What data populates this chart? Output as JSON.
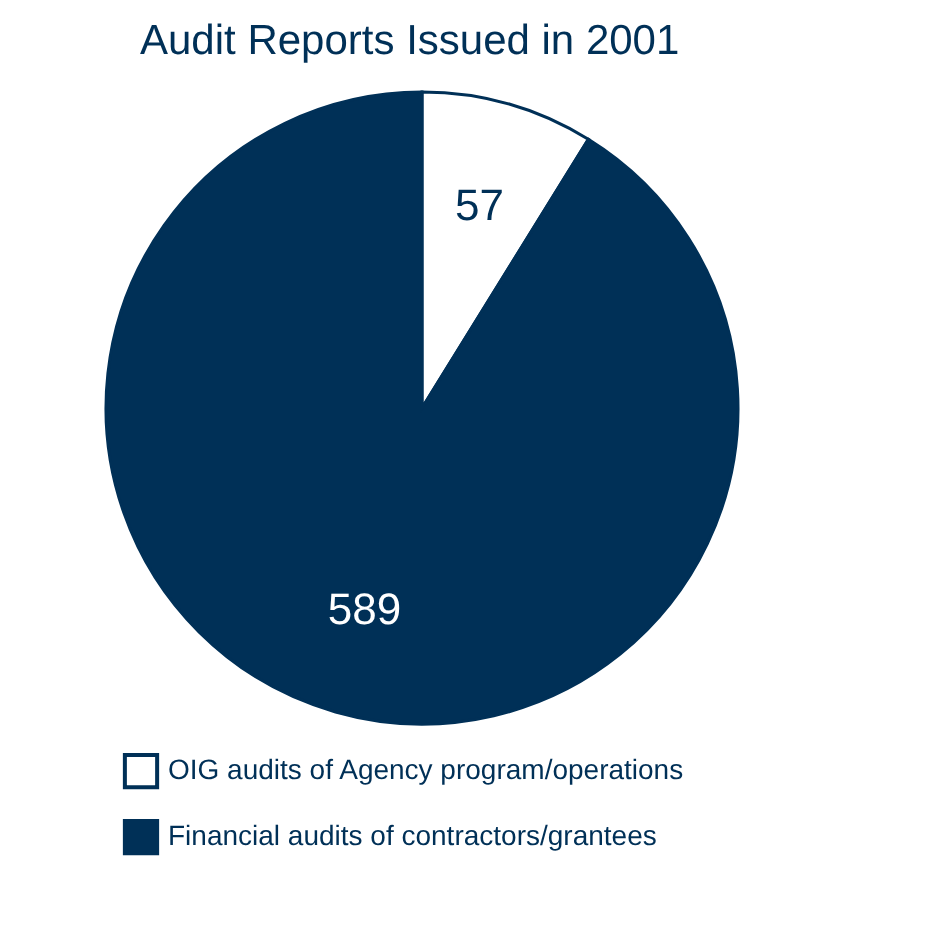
{
  "chart_data": {
    "type": "pie",
    "title": "Audit Reports Issued in 2001",
    "categories": [
      "OIG audits of Agency program/operations",
      "Financial audits of contractors/grantees"
    ],
    "values": [
      57,
      589
    ],
    "colors": [
      "#ffffff",
      "#003057"
    ],
    "data_labels": true,
    "legend": "bottom left"
  }
}
